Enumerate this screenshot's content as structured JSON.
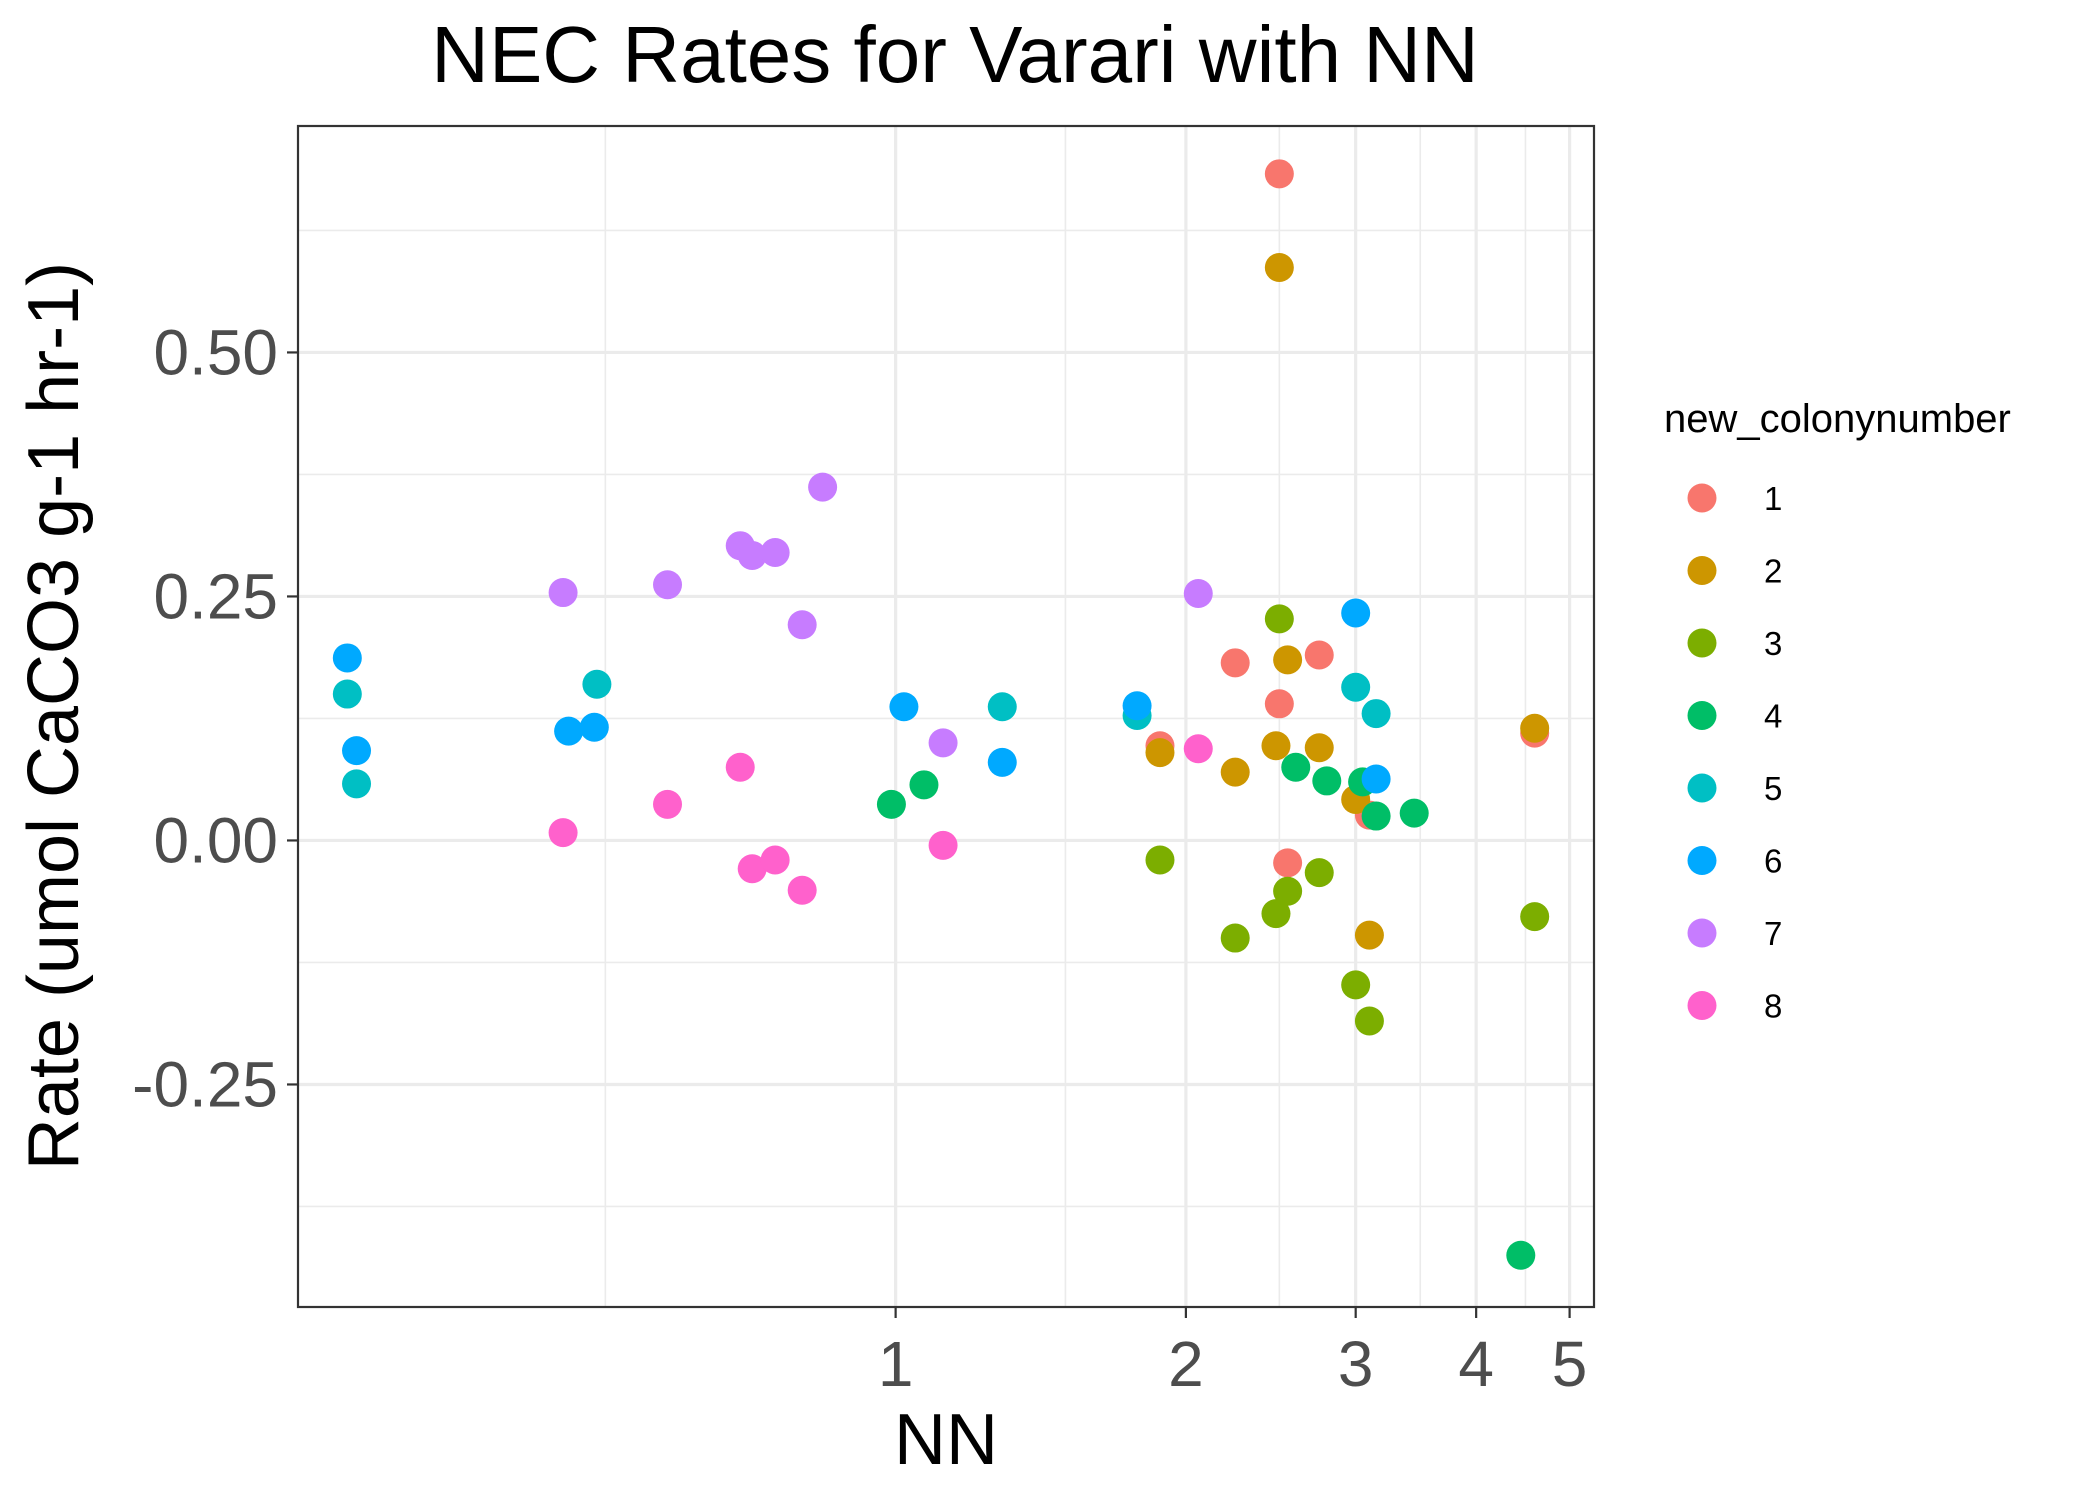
{
  "chart_data": {
    "type": "scatter",
    "title": "NEC Rates for Varari with NN",
    "xlabel": "NN",
    "ylabel": "Rate (umol CaCO3 g-1 hr-1)",
    "x_scale": "log10",
    "xlim": [
      0.24,
      5.3
    ],
    "ylim": [
      -0.478,
      0.732
    ],
    "x_ticks": [
      1,
      2,
      3,
      4,
      5
    ],
    "x_tick_labels": [
      "1",
      "2",
      "3",
      "4",
      "5"
    ],
    "x_minor_gridlines": [
      0.5,
      1.5,
      2.5,
      3.5,
      4.5
    ],
    "y_ticks": [
      0.5,
      0.25,
      0.0,
      -0.25
    ],
    "y_tick_labels": [
      "0.50",
      "0.25",
      "0.00",
      "-0.25"
    ],
    "y_minor_gridlines": [
      0.625,
      0.375,
      0.125,
      -0.125,
      -0.375
    ],
    "grid": true,
    "legend": {
      "title": "new_colonynumber",
      "position": "right",
      "entries": [
        "1",
        "2",
        "3",
        "4",
        "5",
        "6",
        "7",
        "8"
      ]
    },
    "colors": {
      "1": "#F8766D",
      "2": "#CD9600",
      "3": "#7CAE00",
      "4": "#00BE67",
      "5": "#00BFC4",
      "6": "#00A9FF",
      "7": "#C77CFF",
      "8": "#FF61CC"
    },
    "series": [
      {
        "name": "1",
        "points": [
          [
            2.5,
            0.683
          ],
          [
            2.5,
            0.14
          ],
          [
            2.25,
            0.182
          ],
          [
            2.75,
            0.19
          ],
          [
            2.55,
            -0.023
          ],
          [
            3.1,
            0.026
          ],
          [
            4.6,
            0.11
          ],
          [
            1.88,
            0.097
          ]
        ]
      },
      {
        "name": "2",
        "points": [
          [
            2.5,
            0.587
          ],
          [
            2.55,
            0.185
          ],
          [
            2.48,
            0.097
          ],
          [
            2.75,
            0.095
          ],
          [
            2.25,
            0.07
          ],
          [
            3.0,
            0.042
          ],
          [
            1.88,
            0.09
          ],
          [
            3.1,
            -0.097
          ],
          [
            4.6,
            0.115
          ]
        ]
      },
      {
        "name": "3",
        "points": [
          [
            2.5,
            0.227
          ],
          [
            1.88,
            -0.02
          ],
          [
            2.25,
            -0.1
          ],
          [
            2.48,
            -0.075
          ],
          [
            2.55,
            -0.052
          ],
          [
            2.75,
            -0.033
          ],
          [
            3.0,
            -0.148
          ],
          [
            3.1,
            -0.185
          ],
          [
            4.6,
            -0.078
          ]
        ]
      },
      {
        "name": "4",
        "points": [
          [
            0.99,
            0.037
          ],
          [
            1.07,
            0.057
          ],
          [
            2.6,
            0.075
          ],
          [
            2.8,
            0.061
          ],
          [
            3.05,
            0.06
          ],
          [
            3.15,
            0.025
          ],
          [
            3.45,
            0.028
          ],
          [
            4.45,
            -0.425
          ]
        ]
      },
      {
        "name": "5",
        "points": [
          [
            0.27,
            0.15
          ],
          [
            0.276,
            0.058
          ],
          [
            0.49,
            0.16
          ],
          [
            1.29,
            0.137
          ],
          [
            1.78,
            0.128
          ],
          [
            3.0,
            0.157
          ],
          [
            3.15,
            0.13
          ]
        ]
      },
      {
        "name": "6",
        "points": [
          [
            0.27,
            0.187
          ],
          [
            0.276,
            0.092
          ],
          [
            0.458,
            0.112
          ],
          [
            0.487,
            0.116
          ],
          [
            1.02,
            0.137
          ],
          [
            1.29,
            0.08
          ],
          [
            1.78,
            0.138
          ],
          [
            3.0,
            0.233
          ],
          [
            3.15,
            0.063
          ]
        ]
      },
      {
        "name": "7",
        "points": [
          [
            0.452,
            0.254
          ],
          [
            0.58,
            0.262
          ],
          [
            0.69,
            0.302
          ],
          [
            0.71,
            0.292
          ],
          [
            0.75,
            0.295
          ],
          [
            0.8,
            0.221
          ],
          [
            0.84,
            0.362
          ],
          [
            2.06,
            0.253
          ],
          [
            1.12,
            0.1
          ]
        ]
      },
      {
        "name": "8",
        "points": [
          [
            0.452,
            0.008
          ],
          [
            0.58,
            0.037
          ],
          [
            0.69,
            0.075
          ],
          [
            0.71,
            -0.029
          ],
          [
            0.75,
            -0.02
          ],
          [
            0.8,
            -0.051
          ],
          [
            1.12,
            -0.005
          ],
          [
            2.06,
            0.094
          ]
        ]
      }
    ]
  }
}
